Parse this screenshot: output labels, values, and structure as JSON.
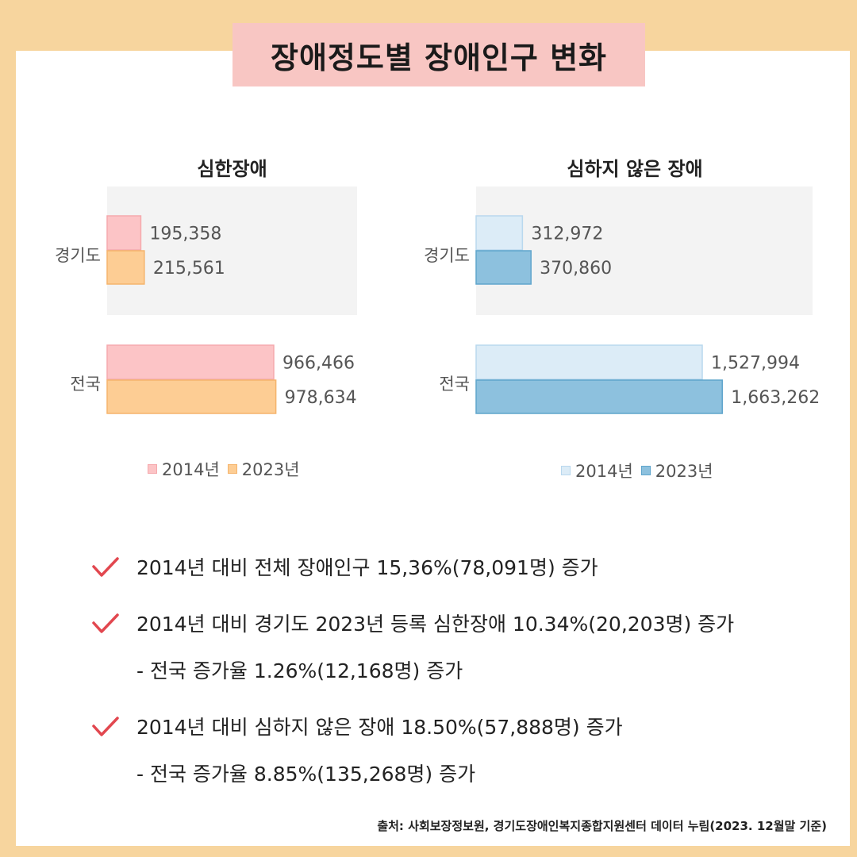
{
  "title": "장애정도별 장애인구 변화",
  "colors": {
    "severe_2014": "#fcc4c6",
    "severe_2023": "#fdcd94",
    "mild_2014": "#dcecf7",
    "mild_2023": "#8dc1de",
    "check": "#e2474f",
    "band": "#f3f3f3"
  },
  "chart_data": [
    {
      "type": "bar",
      "orientation": "horizontal",
      "title": "심한장애",
      "categories": [
        "경기도",
        "전국"
      ],
      "series": [
        {
          "name": "2014년",
          "values": [
            195358,
            966466
          ],
          "labels": [
            "195,358",
            "966,466"
          ]
        },
        {
          "name": "2023년",
          "values": [
            215561,
            978634
          ],
          "labels": [
            "215,561",
            "978,634"
          ]
        }
      ],
      "xlim": [
        0,
        1000000
      ],
      "legend": "bottom"
    },
    {
      "type": "bar",
      "orientation": "horizontal",
      "title": "심하지 않은 장애",
      "categories": [
        "경기도",
        "전국"
      ],
      "series": [
        {
          "name": "2014년",
          "values": [
            312972,
            1527994
          ],
          "labels": [
            "312,972",
            "1,527,994"
          ]
        },
        {
          "name": "2023년",
          "values": [
            370860,
            1663262
          ],
          "labels": [
            "370,860",
            "1,663,262"
          ]
        }
      ],
      "xlim": [
        0,
        2000000
      ],
      "legend": "bottom"
    }
  ],
  "bullets": [
    {
      "text": "2014년 대비 전체 장애인구 15,36%(78,091명) 증가",
      "sub": ""
    },
    {
      "text": "2014년 대비 경기도 2023년 등록 심한장애 10.34%(20,203명) 증가",
      "sub": "- 전국 증가율 1.26%(12,168명) 증가"
    },
    {
      "text": "2014년 대비 심하지 않은 장애 18.50%(57,888명) 증가",
      "sub": "-  전국 증가율 8.85%(135,268명) 증가"
    }
  ],
  "source": "출처: 사회보장정보원, 경기도장애인복지종합지원센터 데이터 누림(2023. 12월말 기준)"
}
